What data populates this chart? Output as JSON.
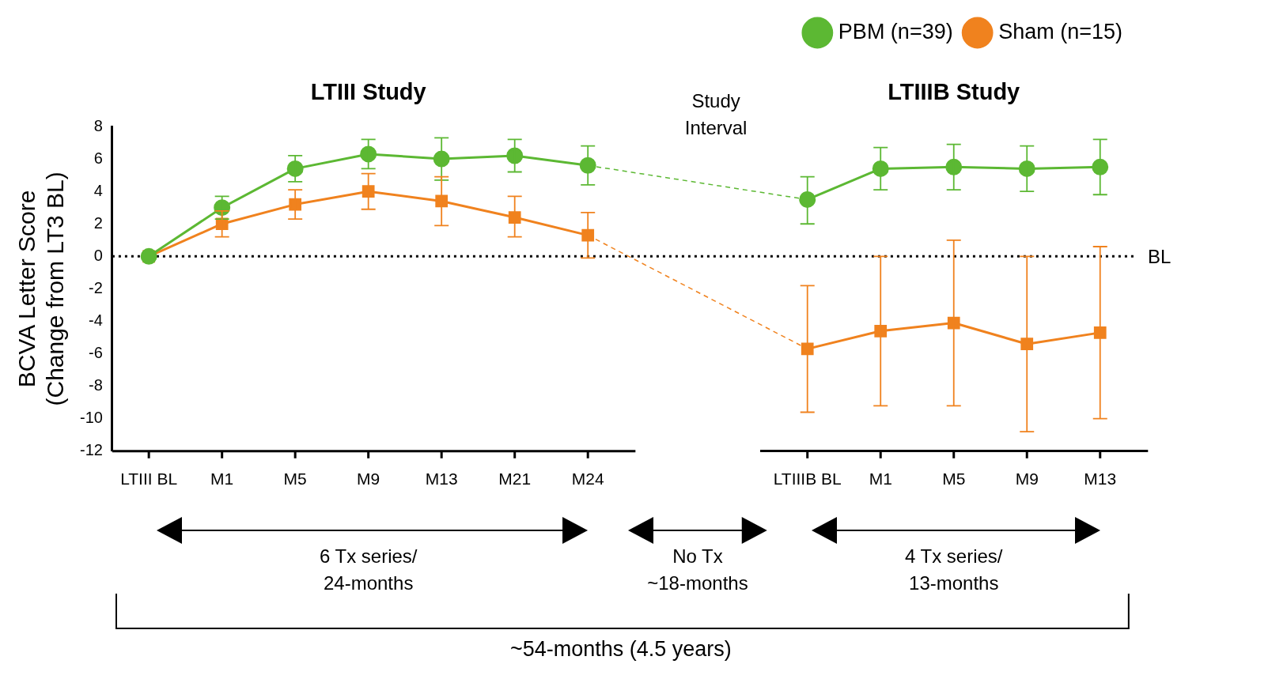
{
  "chart_data": {
    "type": "line",
    "ylabel": "BCVA Letter Score (Change from LT3 BL)",
    "categories": [
      "LTIII BL",
      "M1",
      "M5",
      "M9",
      "M13",
      "M21",
      "M24",
      null,
      null,
      "LTIIIB BL",
      "M1",
      "M5",
      "M9",
      "M13"
    ],
    "series": [
      {
        "name": "PBM (n=39)",
        "color": "#5cb833",
        "marker": "circle",
        "values": [
          0,
          3.0,
          5.4,
          6.3,
          6.0,
          6.2,
          5.6,
          null,
          null,
          3.5,
          5.4,
          5.5,
          5.4,
          5.5
        ],
        "errors": [
          null,
          [
            2.3,
            3.7
          ],
          [
            4.6,
            6.2
          ],
          [
            5.4,
            7.2
          ],
          [
            4.7,
            7.3
          ],
          [
            5.2,
            7.2
          ],
          [
            4.4,
            6.8
          ],
          null,
          null,
          [
            2.0,
            4.9
          ],
          [
            4.1,
            6.7
          ],
          [
            4.1,
            6.9
          ],
          [
            4.0,
            6.8
          ],
          [
            3.8,
            7.2
          ]
        ]
      },
      {
        "name": "Sham (n=15)",
        "color": "#f0821e",
        "marker": "square",
        "values": [
          0,
          2.0,
          3.2,
          4.0,
          3.4,
          2.4,
          1.3,
          null,
          null,
          -5.7,
          -4.6,
          -4.1,
          -5.4,
          -4.7
        ],
        "errors": [
          null,
          [
            1.2,
            2.8
          ],
          [
            2.3,
            4.1
          ],
          [
            2.9,
            5.1
          ],
          [
            1.9,
            4.9
          ],
          [
            1.2,
            3.7
          ],
          [
            -0.1,
            2.7
          ],
          null,
          null,
          [
            -9.6,
            -1.8
          ],
          [
            -9.2,
            0.0
          ],
          [
            -9.2,
            1.0
          ],
          [
            -10.8,
            0.0
          ],
          [
            -10.0,
            0.6
          ]
        ]
      }
    ],
    "ylim": [
      -12,
      8
    ],
    "yticks": [
      -12,
      -10,
      -8,
      -6,
      -4,
      -2,
      0,
      2,
      4,
      6,
      8
    ],
    "grid": false,
    "legend": "top right",
    "line_style": "solid",
    "ref_lines": [
      {
        "axis": "y",
        "value": 0,
        "label": "BL",
        "line_style": "dotted",
        "color": "#000000"
      }
    ],
    "annotations": [
      "LTIII Study",
      "LTIIIB Study",
      "Study Interval",
      "6 Tx series/ 24-months",
      "No Tx ~18-months",
      "4 Tx series/ 13-months",
      "~54-months (4.5 years)"
    ]
  }
}
